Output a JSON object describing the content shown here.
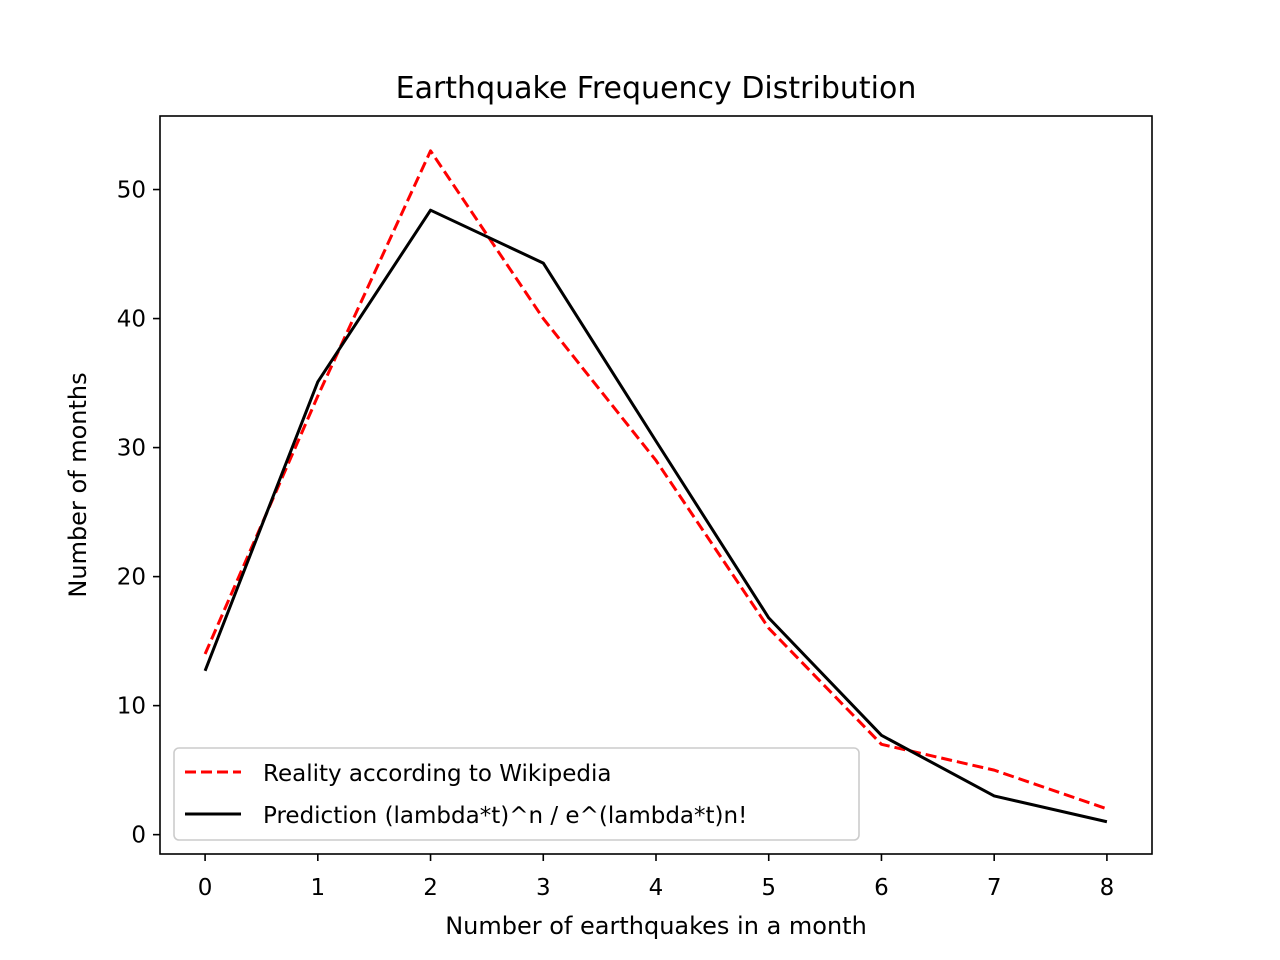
{
  "chart_data": {
    "type": "line",
    "title": "Earthquake Frequency Distribution",
    "xlabel": "Number of earthquakes in a month",
    "ylabel": "Number of months",
    "x": [
      0,
      1,
      2,
      3,
      4,
      5,
      6,
      7,
      8
    ],
    "xlim": [
      -0.4,
      8.4
    ],
    "ylim": [
      -1.5,
      55.7
    ],
    "xticks": [
      0,
      1,
      2,
      3,
      4,
      5,
      6,
      7,
      8
    ],
    "yticks": [
      0,
      10,
      20,
      30,
      40,
      50
    ],
    "grid": false,
    "legend_position": "lower-left",
    "series": [
      {
        "name": "Reality according to Wikipedia",
        "values": [
          14,
          34,
          53,
          40,
          29,
          16,
          7,
          5,
          2
        ],
        "color": "#ff0000",
        "style": "dashed"
      },
      {
        "name": "Prediction (lambda*t)^n / e^(lambda*t)n!",
        "values": [
          12.7,
          35.1,
          48.4,
          44.3,
          30.5,
          16.8,
          7.7,
          3.0,
          1.0
        ],
        "color": "#000000",
        "style": "solid"
      }
    ]
  }
}
